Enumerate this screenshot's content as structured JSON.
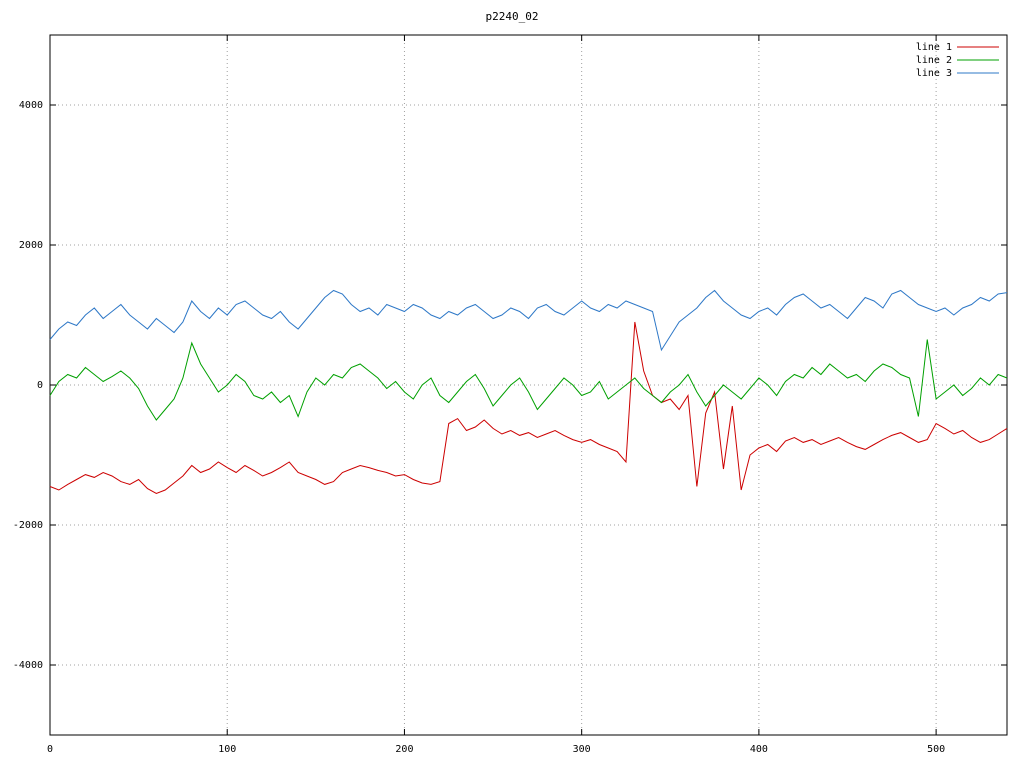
{
  "title": "p2240_02",
  "colors": {
    "line1": "#cc0000",
    "line2": "#00a000",
    "line3": "#2e78c7",
    "grid": "#a0a0a0",
    "border": "#000000",
    "text": "#000000",
    "background": "#ffffff"
  },
  "chart_data": {
    "type": "line",
    "title": "p2240_02",
    "xlabel": "",
    "ylabel": "",
    "xlim": [
      0,
      540
    ],
    "ylim": [
      -5000,
      5000
    ],
    "xticks": [
      0,
      100,
      200,
      300,
      400,
      500
    ],
    "yticks": [
      -4000,
      -2000,
      0,
      2000,
      4000
    ],
    "grid": true,
    "legend_position": "top-right",
    "x_start": 0,
    "x_step": 5,
    "series": [
      {
        "name": "line 1",
        "color": "#cc0000",
        "values": [
          -1450,
          -1500,
          -1420,
          -1350,
          -1280,
          -1320,
          -1250,
          -1300,
          -1380,
          -1420,
          -1350,
          -1480,
          -1550,
          -1500,
          -1400,
          -1300,
          -1150,
          -1250,
          -1200,
          -1100,
          -1180,
          -1250,
          -1150,
          -1220,
          -1300,
          -1250,
          -1180,
          -1100,
          -1250,
          -1300,
          -1350,
          -1420,
          -1380,
          -1250,
          -1200,
          -1150,
          -1180,
          -1220,
          -1250,
          -1300,
          -1280,
          -1350,
          -1400,
          -1420,
          -1380,
          -550,
          -480,
          -650,
          -600,
          -500,
          -620,
          -700,
          -650,
          -720,
          -680,
          -750,
          -700,
          -650,
          -720,
          -780,
          -820,
          -780,
          -850,
          -900,
          -950,
          -1100,
          900,
          200,
          -150,
          -250,
          -200,
          -350,
          -150,
          -1450,
          -400,
          -100,
          -1200,
          -300,
          -1500,
          -1000,
          -900,
          -850,
          -950,
          -800,
          -750,
          -820,
          -780,
          -850,
          -800,
          -750,
          -820,
          -880,
          -920,
          -850,
          -780,
          -720,
          -680,
          -750,
          -820,
          -780,
          -550,
          -620,
          -700,
          -650,
          -750,
          -820,
          -780,
          -700,
          -620
        ]
      },
      {
        "name": "line 2",
        "color": "#00a000",
        "values": [
          -150,
          50,
          150,
          100,
          250,
          150,
          50,
          120,
          200,
          100,
          -50,
          -300,
          -500,
          -350,
          -200,
          100,
          600,
          300,
          100,
          -100,
          0,
          150,
          50,
          -150,
          -200,
          -100,
          -250,
          -150,
          -450,
          -100,
          100,
          0,
          150,
          100,
          250,
          300,
          200,
          100,
          -50,
          50,
          -100,
          -200,
          0,
          100,
          -150,
          -250,
          -100,
          50,
          150,
          -50,
          -300,
          -150,
          0,
          100,
          -100,
          -350,
          -200,
          -50,
          100,
          0,
          -150,
          -100,
          50,
          -200,
          -100,
          0,
          100,
          -50,
          -150,
          -250,
          -100,
          0,
          150,
          -100,
          -300,
          -150,
          0,
          -100,
          -200,
          -50,
          100,
          0,
          -150,
          50,
          150,
          100,
          250,
          150,
          300,
          200,
          100,
          150,
          50,
          200,
          300,
          250,
          150,
          100,
          -450,
          650,
          -200,
          -100,
          0,
          -150,
          -50,
          100,
          0,
          150,
          100
        ]
      },
      {
        "name": "line 3",
        "color": "#2e78c7",
        "values": [
          650,
          800,
          900,
          850,
          1000,
          1100,
          950,
          1050,
          1150,
          1000,
          900,
          800,
          950,
          850,
          750,
          900,
          1200,
          1050,
          950,
          1100,
          1000,
          1150,
          1200,
          1100,
          1000,
          950,
          1050,
          900,
          800,
          950,
          1100,
          1250,
          1350,
          1300,
          1150,
          1050,
          1100,
          1000,
          1150,
          1100,
          1050,
          1150,
          1100,
          1000,
          950,
          1050,
          1000,
          1100,
          1150,
          1050,
          950,
          1000,
          1100,
          1050,
          950,
          1100,
          1150,
          1050,
          1000,
          1100,
          1200,
          1100,
          1050,
          1150,
          1100,
          1200,
          1150,
          1100,
          1050,
          500,
          700,
          900,
          1000,
          1100,
          1250,
          1350,
          1200,
          1100,
          1000,
          950,
          1050,
          1100,
          1000,
          1150,
          1250,
          1300,
          1200,
          1100,
          1150,
          1050,
          950,
          1100,
          1250,
          1200,
          1100,
          1300,
          1350,
          1250,
          1150,
          1100,
          1050,
          1100,
          1000,
          1100,
          1150,
          1250,
          1200,
          1300,
          1320
        ]
      }
    ]
  }
}
